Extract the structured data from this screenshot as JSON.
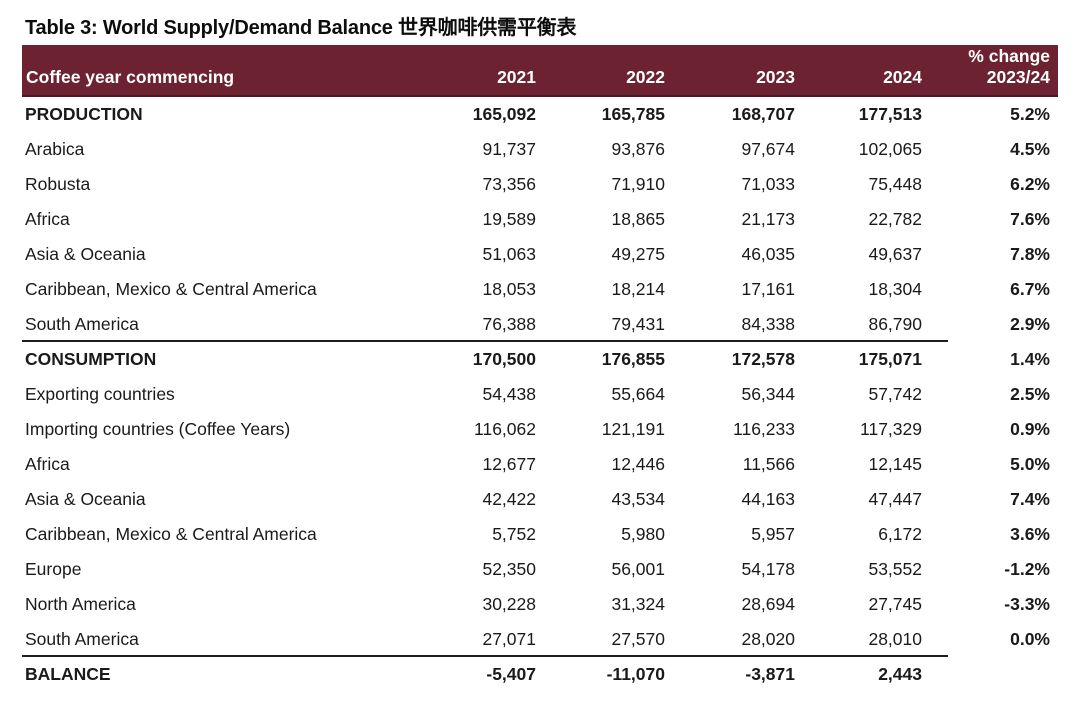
{
  "colors": {
    "header_bg": "#6C2231",
    "header_border_bottom": "#4E1823",
    "header_text": "#FFFFFF",
    "body_text": "#1A1A1A",
    "separator_line": "#1C1C1C"
  },
  "chart_data": {
    "type": "table",
    "title": "Table 3: World Supply/Demand Balance 世界咖啡供需平衡表",
    "header": {
      "label": "Coffee year commencing",
      "years": [
        "2021",
        "2022",
        "2023",
        "2024"
      ],
      "pct_change_line1": "% change",
      "pct_change_line2": "2023/24"
    },
    "rows": [
      {
        "label": "PRODUCTION",
        "values": [
          "165,092",
          "165,785",
          "168,707",
          "177,513"
        ],
        "pct": "5.2%",
        "bold": true,
        "sep": false
      },
      {
        "label": "Arabica",
        "values": [
          "91,737",
          "93,876",
          "97,674",
          "102,065"
        ],
        "pct": "4.5%",
        "bold": false,
        "sep": false
      },
      {
        "label": "Robusta",
        "values": [
          "73,356",
          "71,910",
          "71,033",
          "75,448"
        ],
        "pct": "6.2%",
        "bold": false,
        "sep": false
      },
      {
        "label": "Africa",
        "values": [
          "19,589",
          "18,865",
          "21,173",
          "22,782"
        ],
        "pct": "7.6%",
        "bold": false,
        "sep": false
      },
      {
        "label": "Asia & Oceania",
        "values": [
          "51,063",
          "49,275",
          "46,035",
          "49,637"
        ],
        "pct": "7.8%",
        "bold": false,
        "sep": false
      },
      {
        "label": "Caribbean, Mexico & Central America",
        "values": [
          "18,053",
          "18,214",
          "17,161",
          "18,304"
        ],
        "pct": "6.7%",
        "bold": false,
        "sep": false
      },
      {
        "label": "South America",
        "values": [
          "76,388",
          "79,431",
          "84,338",
          "86,790"
        ],
        "pct": "2.9%",
        "bold": false,
        "sep": true
      },
      {
        "label": "CONSUMPTION",
        "values": [
          "170,500",
          "176,855",
          "172,578",
          "175,071"
        ],
        "pct": "1.4%",
        "bold": true,
        "sep": false
      },
      {
        "label": "Exporting countries",
        "values": [
          "54,438",
          "55,664",
          "56,344",
          "57,742"
        ],
        "pct": "2.5%",
        "bold": false,
        "sep": false
      },
      {
        "label": "Importing countries (Coffee Years)",
        "values": [
          "116,062",
          "121,191",
          "116,233",
          "117,329"
        ],
        "pct": "0.9%",
        "bold": false,
        "sep": false
      },
      {
        "label": "Africa",
        "values": [
          "12,677",
          "12,446",
          "11,566",
          "12,145"
        ],
        "pct": "5.0%",
        "bold": false,
        "sep": false
      },
      {
        "label": "Asia & Oceania",
        "values": [
          "42,422",
          "43,534",
          "44,163",
          "47,447"
        ],
        "pct": "7.4%",
        "bold": false,
        "sep": false
      },
      {
        "label": "Caribbean, Mexico & Central America",
        "values": [
          "5,752",
          "5,980",
          "5,957",
          "6,172"
        ],
        "pct": "3.6%",
        "bold": false,
        "sep": false
      },
      {
        "label": "Europe",
        "values": [
          "52,350",
          "56,001",
          "54,178",
          "53,552"
        ],
        "pct": "-1.2%",
        "bold": false,
        "sep": false
      },
      {
        "label": "North America",
        "values": [
          "30,228",
          "31,324",
          "28,694",
          "27,745"
        ],
        "pct": "-3.3%",
        "bold": false,
        "sep": false
      },
      {
        "label": "South America",
        "values": [
          "27,071",
          "27,570",
          "28,020",
          "28,010"
        ],
        "pct": "0.0%",
        "bold": false,
        "sep": true
      },
      {
        "label": "BALANCE",
        "values": [
          "-5,407",
          "-11,070",
          "-3,871",
          "2,443"
        ],
        "pct": "",
        "bold": true,
        "sep": false
      }
    ]
  }
}
